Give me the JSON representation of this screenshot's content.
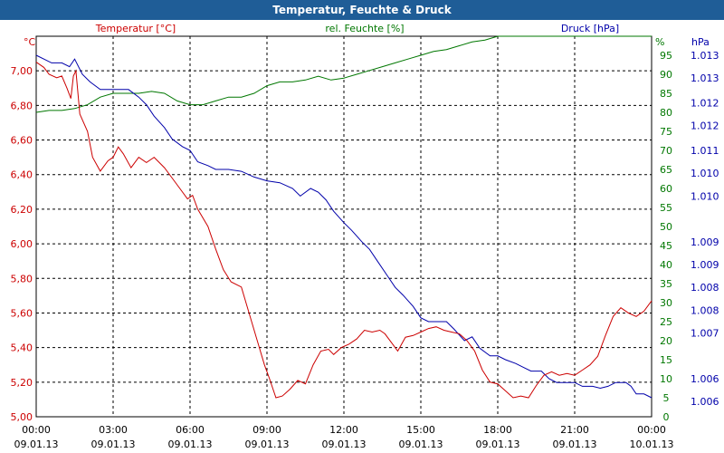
{
  "title": "Temperatur, Feuchte & Druck",
  "chart_data": {
    "type": "line",
    "legend": {
      "temp": "Temperatur [°C]",
      "hum": "rel. Feuchte [%]",
      "press": "Druck [hPa]"
    },
    "units": {
      "temp": "°C",
      "hum": "%",
      "press": "hPa"
    },
    "colors": {
      "temp": "#cc0000",
      "hum": "#007700",
      "press": "#0000aa",
      "grid": "#000000",
      "axis": "#000000"
    },
    "x_hours": [
      0,
      24
    ],
    "x_ticks": [
      {
        "h": 0,
        "time": "00:00",
        "date": "09.01.13"
      },
      {
        "h": 3,
        "time": "03:00",
        "date": "09.01.13"
      },
      {
        "h": 6,
        "time": "06:00",
        "date": "09.01.13"
      },
      {
        "h": 9,
        "time": "09:00",
        "date": "09.01.13"
      },
      {
        "h": 12,
        "time": "12:00",
        "date": "09.01.13"
      },
      {
        "h": 15,
        "time": "15:00",
        "date": "09.01.13"
      },
      {
        "h": 18,
        "time": "18:00",
        "date": "09.01.13"
      },
      {
        "h": 21,
        "time": "21:00",
        "date": "09.01.13"
      },
      {
        "h": 24,
        "time": "00:00",
        "date": "10.01.13"
      }
    ],
    "temp_axis": {
      "ylim": [
        5.0,
        7.2
      ],
      "ticks": [
        "5,00",
        "5,20",
        "5,40",
        "5,60",
        "5,80",
        "6,00",
        "6,20",
        "6,40",
        "6,60",
        "6,80",
        "7,00"
      ],
      "tick_values": [
        5.0,
        5.2,
        5.4,
        5.6,
        5.8,
        6.0,
        6.2,
        6.4,
        6.6,
        6.8,
        7.0
      ]
    },
    "hum_axis": {
      "ylim": [
        0,
        100
      ],
      "ticks": [
        "0",
        "5",
        "10",
        "15",
        "20",
        "25",
        "30",
        "35",
        "40",
        "45",
        "50",
        "55",
        "60",
        "65",
        "70",
        "75",
        "80",
        "85",
        "90",
        "95"
      ],
      "tick_values": [
        0,
        5,
        10,
        15,
        20,
        25,
        30,
        35,
        40,
        45,
        50,
        55,
        60,
        65,
        70,
        75,
        80,
        85,
        90,
        95
      ]
    },
    "press_axis": {
      "ticks": [
        "1.013",
        "1.013",
        "1.012",
        "1.012",
        "1.011",
        "1.010",
        "1.010",
        "1.009",
        "1.009",
        "1.008",
        "1.008",
        "1.007",
        "1.006",
        "1.006"
      ],
      "tick_values": [
        95,
        89,
        82.5,
        76.5,
        70,
        64,
        58,
        46,
        40,
        34,
        28,
        22,
        10,
        4
      ]
    },
    "temp": [
      [
        0,
        7.05
      ],
      [
        0.3,
        7.02
      ],
      [
        0.5,
        6.98
      ],
      [
        0.8,
        6.96
      ],
      [
        1.0,
        6.97
      ],
      [
        1.2,
        6.9
      ],
      [
        1.35,
        6.84
      ],
      [
        1.45,
        6.97
      ],
      [
        1.55,
        7.0
      ],
      [
        1.7,
        6.75
      ],
      [
        2.0,
        6.65
      ],
      [
        2.2,
        6.5
      ],
      [
        2.5,
        6.42
      ],
      [
        2.8,
        6.48
      ],
      [
        3.0,
        6.5
      ],
      [
        3.2,
        6.56
      ],
      [
        3.4,
        6.52
      ],
      [
        3.7,
        6.44
      ],
      [
        4.0,
        6.5
      ],
      [
        4.3,
        6.47
      ],
      [
        4.6,
        6.5
      ],
      [
        5.0,
        6.44
      ],
      [
        5.3,
        6.38
      ],
      [
        5.6,
        6.32
      ],
      [
        5.9,
        6.26
      ],
      [
        6.1,
        6.28
      ],
      [
        6.3,
        6.2
      ],
      [
        6.7,
        6.1
      ],
      [
        7.0,
        5.97
      ],
      [
        7.3,
        5.85
      ],
      [
        7.6,
        5.78
      ],
      [
        8.0,
        5.75
      ],
      [
        8.3,
        5.6
      ],
      [
        8.6,
        5.45
      ],
      [
        8.9,
        5.3
      ],
      [
        9.1,
        5.22
      ],
      [
        9.35,
        5.11
      ],
      [
        9.6,
        5.12
      ],
      [
        9.9,
        5.16
      ],
      [
        10.2,
        5.21
      ],
      [
        10.5,
        5.19
      ],
      [
        10.8,
        5.3
      ],
      [
        11.1,
        5.38
      ],
      [
        11.4,
        5.39
      ],
      [
        11.6,
        5.36
      ],
      [
        11.9,
        5.4
      ],
      [
        12.2,
        5.42
      ],
      [
        12.5,
        5.45
      ],
      [
        12.8,
        5.5
      ],
      [
        13.1,
        5.49
      ],
      [
        13.4,
        5.5
      ],
      [
        13.6,
        5.48
      ],
      [
        13.9,
        5.42
      ],
      [
        14.1,
        5.38
      ],
      [
        14.4,
        5.46
      ],
      [
        14.7,
        5.47
      ],
      [
        15.0,
        5.49
      ],
      [
        15.3,
        5.51
      ],
      [
        15.6,
        5.52
      ],
      [
        15.9,
        5.5
      ],
      [
        16.2,
        5.49
      ],
      [
        16.5,
        5.48
      ],
      [
        16.8,
        5.44
      ],
      [
        17.1,
        5.38
      ],
      [
        17.4,
        5.27
      ],
      [
        17.7,
        5.2
      ],
      [
        18.0,
        5.19
      ],
      [
        18.3,
        5.15
      ],
      [
        18.6,
        5.11
      ],
      [
        18.9,
        5.12
      ],
      [
        19.2,
        5.11
      ],
      [
        19.5,
        5.18
      ],
      [
        19.8,
        5.24
      ],
      [
        20.1,
        5.26
      ],
      [
        20.4,
        5.24
      ],
      [
        20.7,
        5.25
      ],
      [
        21.0,
        5.24
      ],
      [
        21.3,
        5.27
      ],
      [
        21.6,
        5.3
      ],
      [
        21.9,
        5.35
      ],
      [
        22.2,
        5.47
      ],
      [
        22.5,
        5.58
      ],
      [
        22.8,
        5.63
      ],
      [
        23.1,
        5.6
      ],
      [
        23.4,
        5.58
      ],
      [
        23.7,
        5.61
      ],
      [
        24.0,
        5.67
      ]
    ],
    "hum": [
      [
        0,
        80
      ],
      [
        0.5,
        80.5
      ],
      [
        1.0,
        80.5
      ],
      [
        1.5,
        81
      ],
      [
        2.0,
        82
      ],
      [
        2.5,
        84
      ],
      [
        3.0,
        85
      ],
      [
        3.5,
        85
      ],
      [
        4.0,
        85
      ],
      [
        4.5,
        85.5
      ],
      [
        5.0,
        85
      ],
      [
        5.5,
        83
      ],
      [
        6.0,
        82
      ],
      [
        6.5,
        82
      ],
      [
        7.0,
        83
      ],
      [
        7.5,
        84
      ],
      [
        8.0,
        84
      ],
      [
        8.5,
        85
      ],
      [
        9.0,
        87
      ],
      [
        9.5,
        88
      ],
      [
        10.0,
        88
      ],
      [
        10.5,
        88.5
      ],
      [
        11.0,
        89.5
      ],
      [
        11.5,
        88.5
      ],
      [
        12.0,
        89
      ],
      [
        12.5,
        90
      ],
      [
        13.0,
        91
      ],
      [
        13.5,
        92
      ],
      [
        14.0,
        93
      ],
      [
        14.5,
        94
      ],
      [
        15.0,
        95
      ],
      [
        15.5,
        96
      ],
      [
        16.0,
        96.5
      ],
      [
        16.5,
        97.5
      ],
      [
        17.0,
        98.5
      ],
      [
        17.5,
        99
      ],
      [
        18.0,
        100
      ],
      [
        19.0,
        100
      ],
      [
        20.0,
        100
      ],
      [
        21.0,
        100
      ],
      [
        22.0,
        100
      ],
      [
        23.0,
        100
      ],
      [
        24.0,
        100
      ]
    ],
    "press": [
      [
        0,
        95
      ],
      [
        0.3,
        94
      ],
      [
        0.6,
        93
      ],
      [
        1.0,
        93
      ],
      [
        1.3,
        92
      ],
      [
        1.5,
        94
      ],
      [
        1.8,
        90
      ],
      [
        2.1,
        88
      ],
      [
        2.5,
        86
      ],
      [
        3.0,
        86
      ],
      [
        3.3,
        86
      ],
      [
        3.6,
        86
      ],
      [
        4.0,
        84
      ],
      [
        4.3,
        82
      ],
      [
        4.6,
        79
      ],
      [
        5.0,
        76
      ],
      [
        5.3,
        73
      ],
      [
        5.7,
        71
      ],
      [
        6.0,
        70
      ],
      [
        6.3,
        67
      ],
      [
        6.7,
        66
      ],
      [
        7.0,
        65
      ],
      [
        7.5,
        65
      ],
      [
        8.0,
        64.5
      ],
      [
        8.5,
        63
      ],
      [
        9.0,
        62
      ],
      [
        9.5,
        61.5
      ],
      [
        10.0,
        60
      ],
      [
        10.3,
        58
      ],
      [
        10.7,
        60
      ],
      [
        11.0,
        59
      ],
      [
        11.3,
        57
      ],
      [
        11.6,
        54
      ],
      [
        12.0,
        51
      ],
      [
        12.3,
        49
      ],
      [
        12.7,
        46
      ],
      [
        13.0,
        44
      ],
      [
        13.3,
        41
      ],
      [
        13.7,
        37
      ],
      [
        14.0,
        34
      ],
      [
        14.3,
        32
      ],
      [
        14.7,
        29
      ],
      [
        15.0,
        26
      ],
      [
        15.3,
        25
      ],
      [
        15.7,
        25
      ],
      [
        16.0,
        25
      ],
      [
        16.3,
        23
      ],
      [
        16.7,
        20
      ],
      [
        17.0,
        21
      ],
      [
        17.3,
        18
      ],
      [
        17.7,
        16
      ],
      [
        18.0,
        16
      ],
      [
        18.3,
        15
      ],
      [
        18.7,
        14
      ],
      [
        19.0,
        13
      ],
      [
        19.3,
        12
      ],
      [
        19.7,
        12
      ],
      [
        20.0,
        10
      ],
      [
        20.3,
        9
      ],
      [
        20.7,
        9
      ],
      [
        21.0,
        9
      ],
      [
        21.3,
        8
      ],
      [
        21.7,
        8
      ],
      [
        22.0,
        7.5
      ],
      [
        22.3,
        8
      ],
      [
        22.6,
        9
      ],
      [
        23.0,
        9
      ],
      [
        23.2,
        8
      ],
      [
        23.4,
        6
      ],
      [
        23.7,
        6
      ],
      [
        24.0,
        5
      ]
    ]
  }
}
